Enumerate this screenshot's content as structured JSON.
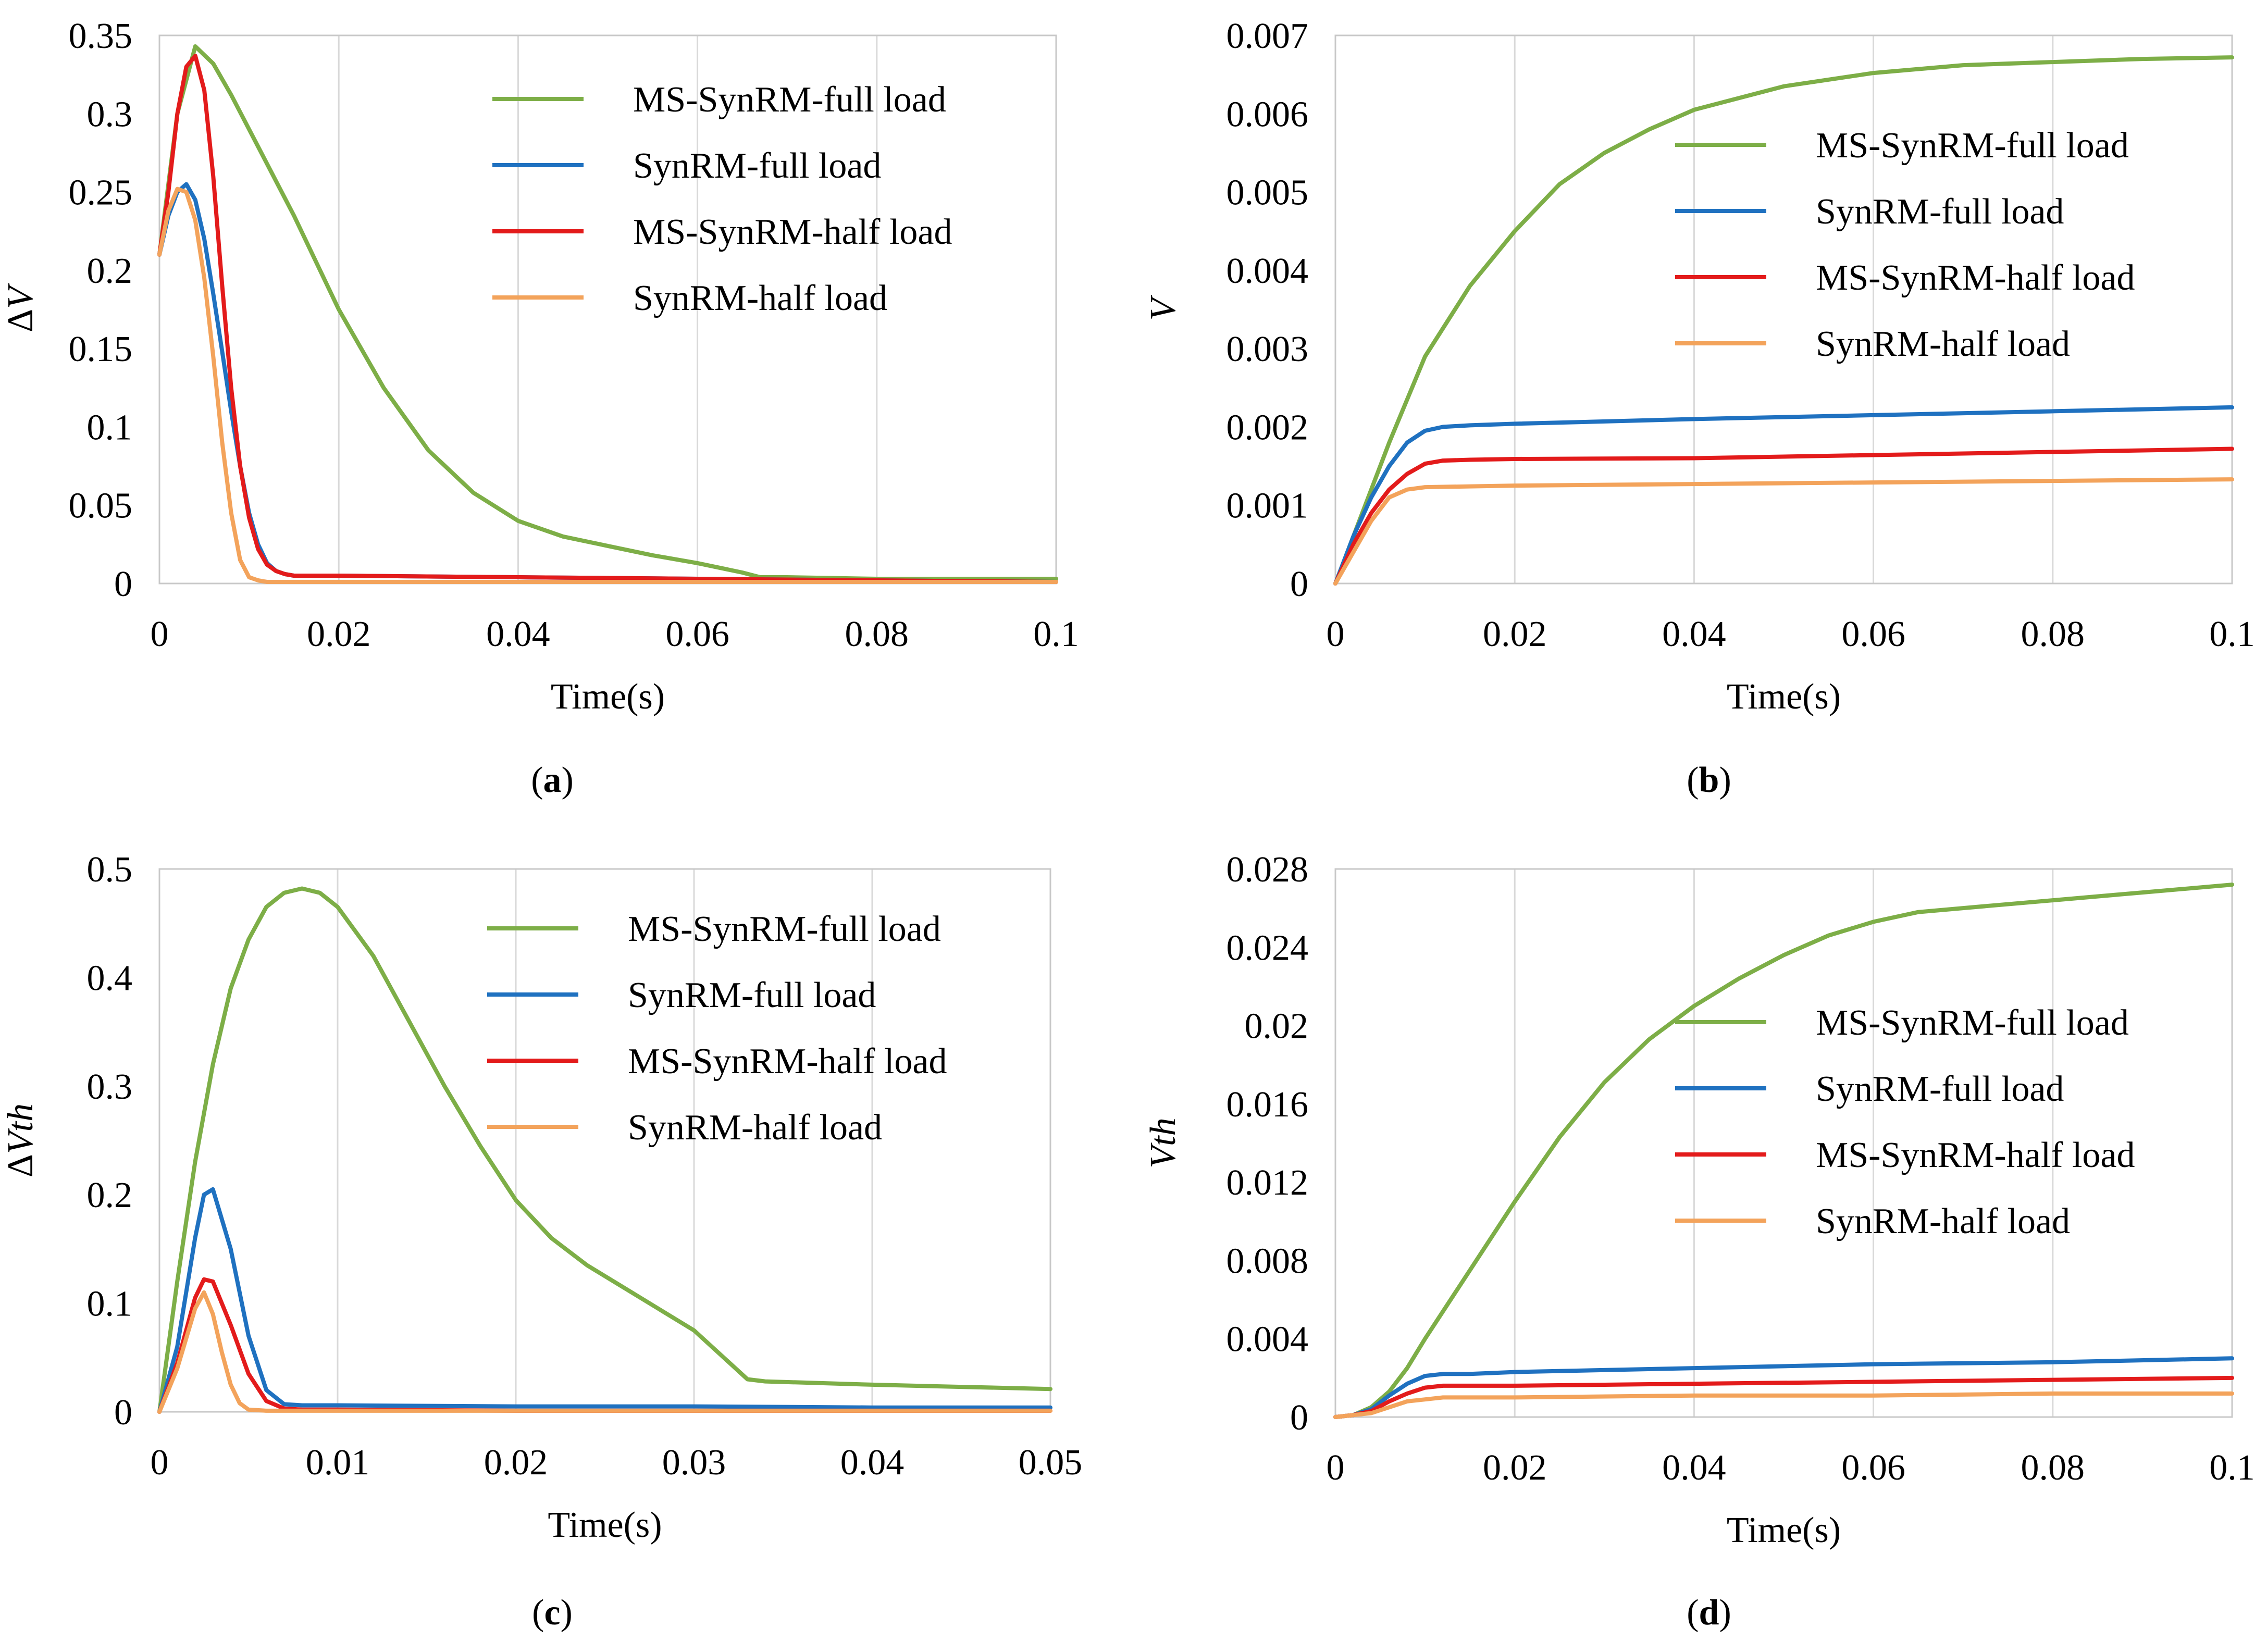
{
  "colors": {
    "green": "#7dae47",
    "blue": "#1f71c0",
    "red": "#e31b1b",
    "orange": "#f3a35b",
    "grid": "#d9d9d9",
    "axis": "#c8c8c8"
  },
  "chart_data": [
    {
      "type": "line",
      "caption_letter": "a",
      "xlabel": "Time(s)",
      "ylabel_prefix": "Δ",
      "ylabel_var": "V",
      "xlim": [
        0,
        0.1
      ],
      "ylim": [
        0,
        0.35
      ],
      "xticks": [
        "0",
        "0.02",
        "0.04",
        "0.06",
        "0.08",
        "0.1"
      ],
      "yticks": [
        "0",
        "0.05",
        "0.1",
        "0.15",
        "0.2",
        "0.25",
        "0.3",
        "0.35"
      ],
      "legend": [
        "MS-SynRM-full load",
        "SynRM-full load",
        "MS-SynRM-half load",
        "SynRM-half load"
      ],
      "legend_position": "top-right",
      "grid": "vertical",
      "series": [
        {
          "name": "MS-SynRM-full load",
          "color": "green",
          "x": [
            0,
            0.002,
            0.004,
            0.006,
            0.008,
            0.01,
            0.015,
            0.02,
            0.025,
            0.03,
            0.035,
            0.04,
            0.045,
            0.05,
            0.055,
            0.06,
            0.065,
            0.067,
            0.07,
            0.08,
            0.09,
            0.1
          ],
          "y": [
            0.21,
            0.3,
            0.343,
            0.332,
            0.312,
            0.29,
            0.235,
            0.175,
            0.125,
            0.085,
            0.058,
            0.04,
            0.03,
            0.024,
            0.018,
            0.013,
            0.007,
            0.004,
            0.004,
            0.003,
            0.003,
            0.003
          ]
        },
        {
          "name": "SynRM-full load",
          "color": "blue",
          "x": [
            0,
            0.001,
            0.002,
            0.003,
            0.004,
            0.005,
            0.006,
            0.007,
            0.008,
            0.009,
            0.01,
            0.011,
            0.012,
            0.013,
            0.014,
            0.015,
            0.02,
            0.04,
            0.06,
            0.08,
            0.1
          ],
          "y": [
            0.21,
            0.235,
            0.25,
            0.255,
            0.245,
            0.22,
            0.185,
            0.148,
            0.11,
            0.075,
            0.045,
            0.025,
            0.013,
            0.008,
            0.006,
            0.005,
            0.005,
            0.004,
            0.003,
            0.002,
            0.001
          ]
        },
        {
          "name": "MS-SynRM-half load",
          "color": "red",
          "x": [
            0,
            0.001,
            0.002,
            0.003,
            0.004,
            0.005,
            0.006,
            0.007,
            0.008,
            0.009,
            0.01,
            0.011,
            0.012,
            0.013,
            0.014,
            0.015,
            0.02,
            0.04,
            0.06,
            0.08,
            0.1
          ],
          "y": [
            0.21,
            0.25,
            0.3,
            0.33,
            0.337,
            0.315,
            0.26,
            0.19,
            0.125,
            0.075,
            0.042,
            0.022,
            0.012,
            0.008,
            0.006,
            0.005,
            0.005,
            0.004,
            0.003,
            0.002,
            0.001
          ]
        },
        {
          "name": "SynRM-half load",
          "color": "orange",
          "x": [
            0,
            0.001,
            0.002,
            0.003,
            0.004,
            0.005,
            0.006,
            0.007,
            0.008,
            0.009,
            0.01,
            0.011,
            0.012,
            0.015,
            0.02,
            0.04,
            0.06,
            0.08,
            0.1
          ],
          "y": [
            0.21,
            0.238,
            0.252,
            0.25,
            0.232,
            0.195,
            0.145,
            0.09,
            0.045,
            0.015,
            0.004,
            0.002,
            0.001,
            0.001,
            0.001,
            0.001,
            0.001,
            0.001,
            0.001
          ]
        }
      ]
    },
    {
      "type": "line",
      "caption_letter": "b",
      "xlabel": "Time(s)",
      "ylabel_prefix": "",
      "ylabel_var": "V",
      "xlim": [
        0,
        0.1
      ],
      "ylim": [
        0,
        0.007
      ],
      "xticks": [
        "0",
        "0.02",
        "0.04",
        "0.06",
        "0.08",
        "0.1"
      ],
      "yticks": [
        "0",
        "0.001",
        "0.002",
        "0.003",
        "0.004",
        "0.005",
        "0.006",
        "0.007"
      ],
      "legend": [
        "MS-SynRM-full load",
        "SynRM-full load",
        "MS-SynRM-half load",
        "SynRM-half load"
      ],
      "legend_position": "top-right",
      "grid": "vertical",
      "series": [
        {
          "name": "MS-SynRM-full load",
          "color": "green",
          "x": [
            0,
            0.003,
            0.006,
            0.01,
            0.015,
            0.02,
            0.025,
            0.03,
            0.035,
            0.04,
            0.045,
            0.05,
            0.06,
            0.07,
            0.08,
            0.09,
            0.1
          ],
          "y": [
            0,
            0.0009,
            0.0018,
            0.0029,
            0.0038,
            0.0045,
            0.0051,
            0.0055,
            0.0058,
            0.00605,
            0.0062,
            0.00635,
            0.00652,
            0.00662,
            0.00666,
            0.0067,
            0.00672
          ]
        },
        {
          "name": "SynRM-full load",
          "color": "blue",
          "x": [
            0,
            0.002,
            0.004,
            0.006,
            0.008,
            0.01,
            0.012,
            0.015,
            0.02,
            0.04,
            0.06,
            0.08,
            0.1
          ],
          "y": [
            0,
            0.0006,
            0.0011,
            0.0015,
            0.0018,
            0.00195,
            0.002,
            0.00202,
            0.00204,
            0.0021,
            0.00215,
            0.0022,
            0.00225
          ]
        },
        {
          "name": "MS-SynRM-half load",
          "color": "red",
          "x": [
            0,
            0.002,
            0.004,
            0.006,
            0.008,
            0.01,
            0.012,
            0.015,
            0.02,
            0.04,
            0.06,
            0.08,
            0.1
          ],
          "y": [
            0,
            0.0005,
            0.0009,
            0.0012,
            0.0014,
            0.00153,
            0.00157,
            0.00158,
            0.00159,
            0.0016,
            0.00164,
            0.00168,
            0.00172
          ]
        },
        {
          "name": "SynRM-half load",
          "color": "orange",
          "x": [
            0,
            0.002,
            0.004,
            0.006,
            0.008,
            0.01,
            0.015,
            0.02,
            0.04,
            0.06,
            0.08,
            0.1
          ],
          "y": [
            0,
            0.0004,
            0.0008,
            0.0011,
            0.0012,
            0.00123,
            0.00124,
            0.00125,
            0.00127,
            0.00129,
            0.00131,
            0.00133
          ]
        }
      ]
    },
    {
      "type": "line",
      "caption_letter": "c",
      "xlabel": "Time(s)",
      "ylabel_prefix": "Δ",
      "ylabel_var": "Vth",
      "xlim": [
        0,
        0.05
      ],
      "ylim": [
        0,
        0.5
      ],
      "xticks": [
        "0",
        "0.01",
        "0.02",
        "0.03",
        "0.04",
        "0.05"
      ],
      "yticks": [
        "0",
        "0.1",
        "0.2",
        "0.3",
        "0.4",
        "0.5"
      ],
      "legend": [
        "MS-SynRM-full load",
        "SynRM-full load",
        "MS-SynRM-half load",
        "SynRM-half load"
      ],
      "legend_position": "top-right",
      "grid": "vertical",
      "series": [
        {
          "name": "MS-SynRM-full load",
          "color": "green",
          "x": [
            0,
            0.001,
            0.002,
            0.003,
            0.004,
            0.005,
            0.006,
            0.007,
            0.008,
            0.009,
            0.01,
            0.012,
            0.014,
            0.016,
            0.018,
            0.02,
            0.022,
            0.024,
            0.026,
            0.028,
            0.03,
            0.032,
            0.033,
            0.034,
            0.04,
            0.045,
            0.05
          ],
          "y": [
            0,
            0.12,
            0.23,
            0.32,
            0.39,
            0.435,
            0.465,
            0.478,
            0.482,
            0.478,
            0.465,
            0.42,
            0.36,
            0.3,
            0.245,
            0.195,
            0.16,
            0.135,
            0.115,
            0.095,
            0.075,
            0.045,
            0.03,
            0.028,
            0.025,
            0.023,
            0.021
          ]
        },
        {
          "name": "SynRM-full load",
          "color": "blue",
          "x": [
            0,
            0.001,
            0.002,
            0.0025,
            0.003,
            0.004,
            0.005,
            0.006,
            0.007,
            0.008,
            0.01,
            0.02,
            0.03,
            0.04,
            0.05
          ],
          "y": [
            0,
            0.06,
            0.16,
            0.2,
            0.205,
            0.15,
            0.07,
            0.02,
            0.007,
            0.006,
            0.006,
            0.005,
            0.005,
            0.004,
            0.004
          ]
        },
        {
          "name": "MS-SynRM-half load",
          "color": "red",
          "x": [
            0,
            0.001,
            0.002,
            0.0025,
            0.003,
            0.004,
            0.005,
            0.006,
            0.007,
            0.008,
            0.01,
            0.02,
            0.03,
            0.04,
            0.05
          ],
          "y": [
            0,
            0.045,
            0.105,
            0.122,
            0.12,
            0.08,
            0.035,
            0.01,
            0.003,
            0.002,
            0.002,
            0.001,
            0.001,
            0.001,
            0.001
          ]
        },
        {
          "name": "SynRM-half load",
          "color": "orange",
          "x": [
            0,
            0.001,
            0.002,
            0.0025,
            0.003,
            0.0035,
            0.004,
            0.0045,
            0.005,
            0.006,
            0.01,
            0.02,
            0.03,
            0.04,
            0.05
          ],
          "y": [
            0,
            0.04,
            0.095,
            0.11,
            0.09,
            0.055,
            0.025,
            0.008,
            0.002,
            0.001,
            0.001,
            0.001,
            0.001,
            0.001,
            0.001
          ]
        }
      ]
    },
    {
      "type": "line",
      "caption_letter": "d",
      "xlabel": "Time(s)",
      "ylabel_prefix": "",
      "ylabel_var": "Vth",
      "xlim": [
        0,
        0.1
      ],
      "ylim": [
        0,
        0.028
      ],
      "xticks": [
        "0",
        "0.02",
        "0.04",
        "0.06",
        "0.08",
        "0.1"
      ],
      "yticks": [
        "0",
        "0.004",
        "0.008",
        "0.012",
        "0.016",
        "0.02",
        "0.024",
        "0.028"
      ],
      "legend": [
        "MS-SynRM-full load",
        "SynRM-full load",
        "MS-SynRM-half load",
        "SynRM-half load"
      ],
      "legend_position": "top-right",
      "grid": "vertical",
      "series": [
        {
          "name": "MS-SynRM-full load",
          "color": "green",
          "x": [
            0,
            0.002,
            0.004,
            0.006,
            0.008,
            0.01,
            0.015,
            0.02,
            0.025,
            0.03,
            0.035,
            0.04,
            0.045,
            0.05,
            0.055,
            0.06,
            0.065,
            0.07,
            0.08,
            0.09,
            0.1
          ],
          "y": [
            0,
            0.0001,
            0.0005,
            0.0013,
            0.0025,
            0.004,
            0.0075,
            0.011,
            0.0143,
            0.0171,
            0.0193,
            0.021,
            0.0224,
            0.0236,
            0.0246,
            0.0253,
            0.0258,
            0.026,
            0.0264,
            0.0268,
            0.0272
          ]
        },
        {
          "name": "SynRM-full load",
          "color": "blue",
          "x": [
            0,
            0.002,
            0.004,
            0.006,
            0.008,
            0.01,
            0.012,
            0.015,
            0.02,
            0.04,
            0.06,
            0.08,
            0.1
          ],
          "y": [
            0,
            0.0001,
            0.0004,
            0.0011,
            0.0017,
            0.0021,
            0.0022,
            0.0022,
            0.0023,
            0.0025,
            0.0027,
            0.0028,
            0.003
          ]
        },
        {
          "name": "MS-SynRM-half load",
          "color": "red",
          "x": [
            0,
            0.002,
            0.004,
            0.006,
            0.008,
            0.01,
            0.012,
            0.015,
            0.02,
            0.04,
            0.06,
            0.08,
            0.1
          ],
          "y": [
            0,
            0.0001,
            0.0003,
            0.0008,
            0.0012,
            0.0015,
            0.0016,
            0.0016,
            0.0016,
            0.0017,
            0.0018,
            0.0019,
            0.002
          ]
        },
        {
          "name": "SynRM-half load",
          "color": "orange",
          "x": [
            0,
            0.002,
            0.004,
            0.006,
            0.008,
            0.01,
            0.012,
            0.015,
            0.02,
            0.04,
            0.06,
            0.08,
            0.1
          ],
          "y": [
            0,
            0.0001,
            0.0002,
            0.0005,
            0.0008,
            0.0009,
            0.001,
            0.001,
            0.001,
            0.0011,
            0.0011,
            0.0012,
            0.0012
          ]
        }
      ]
    }
  ]
}
